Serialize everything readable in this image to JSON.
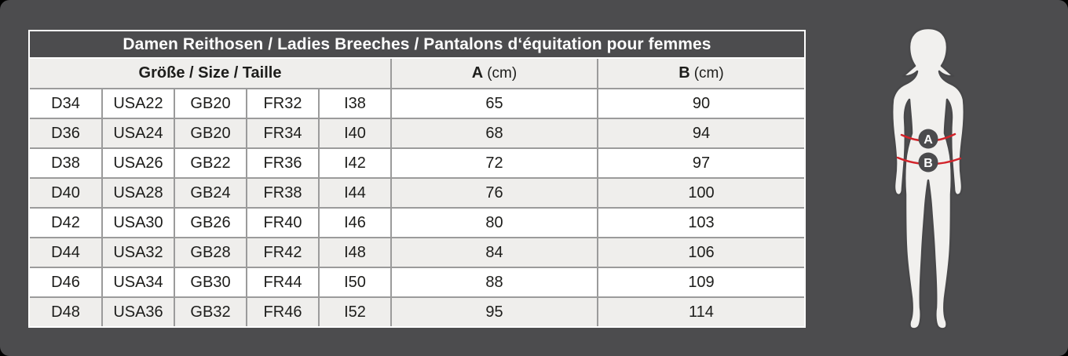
{
  "chart_data": {
    "type": "table",
    "title": "Damen Reithosen / Ladies Breeches / Pantalons d‘équitation pour femmes",
    "size_header": "Größe / Size / Taille",
    "measure_a_label": "A",
    "measure_a_unit": "(cm)",
    "measure_b_label": "B",
    "measure_b_unit": "(cm)",
    "columns": [
      "D",
      "USA",
      "GB",
      "FR",
      "I",
      "A (cm)",
      "B (cm)"
    ],
    "rows": [
      {
        "d": "D34",
        "usa": "USA22",
        "gb": "GB20",
        "fr": "FR32",
        "i": "I38",
        "a": "65",
        "b": "90"
      },
      {
        "d": "D36",
        "usa": "USA24",
        "gb": "GB20",
        "fr": "FR34",
        "i": "I40",
        "a": "68",
        "b": "94"
      },
      {
        "d": "D38",
        "usa": "USA26",
        "gb": "GB22",
        "fr": "FR36",
        "i": "I42",
        "a": "72",
        "b": "97"
      },
      {
        "d": "D40",
        "usa": "USA28",
        "gb": "GB24",
        "fr": "FR38",
        "i": "I44",
        "a": "76",
        "b": "100"
      },
      {
        "d": "D42",
        "usa": "USA30",
        "gb": "GB26",
        "fr": "FR40",
        "i": "I46",
        "a": "80",
        "b": "103"
      },
      {
        "d": "D44",
        "usa": "USA32",
        "gb": "GB28",
        "fr": "FR42",
        "i": "I48",
        "a": "84",
        "b": "106"
      },
      {
        "d": "D46",
        "usa": "USA34",
        "gb": "GB30",
        "fr": "FR44",
        "i": "I50",
        "a": "88",
        "b": "109"
      },
      {
        "d": "D48",
        "usa": "USA36",
        "gb": "GB32",
        "fr": "FR46",
        "i": "I52",
        "a": "95",
        "b": "114"
      }
    ]
  },
  "figure": {
    "marker_a": "A",
    "marker_b": "B",
    "line_color": "#d2232a",
    "badge_color": "#4b4b4d",
    "body_fill": "#f1f0ee",
    "body_outline": "#48484a"
  },
  "colors": {
    "card_background": "#4c4c4e",
    "row_alt_background": "#efeeec",
    "grid_line": "#9b9b9b",
    "text": "#1d1d1b"
  }
}
